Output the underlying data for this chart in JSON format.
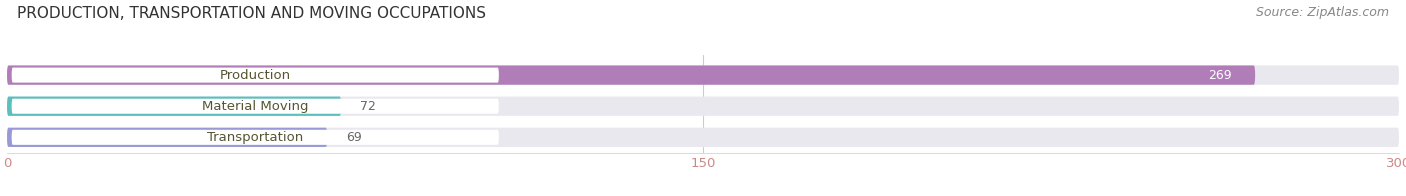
{
  "title": "PRODUCTION, TRANSPORTATION AND MOVING OCCUPATIONS",
  "source": "Source: ZipAtlas.com",
  "categories": [
    "Production",
    "Material Moving",
    "Transportation"
  ],
  "values": [
    269,
    72,
    69
  ],
  "bar_colors": [
    "#b07db8",
    "#5bbfbf",
    "#9999d8"
  ],
  "bar_bg_color": "#e8e8ee",
  "xlim": [
    0,
    300
  ],
  "xticks": [
    0,
    150,
    300
  ],
  "tick_color": "#cc8888",
  "title_fontsize": 11,
  "label_fontsize": 9.5,
  "value_fontsize": 9,
  "source_fontsize": 9,
  "background_color": "#ffffff"
}
